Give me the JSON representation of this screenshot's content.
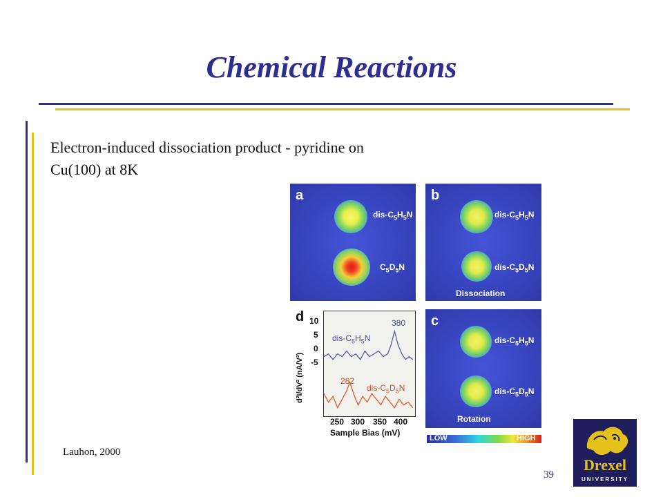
{
  "slide": {
    "title": "Chemical Reactions",
    "body_text": "Electron-induced dissociation product - pyridine on Cu(100) at 8K",
    "citation": "Lauhon, 2000",
    "page_number": "39",
    "accent_blue": "#2e2e8f",
    "accent_yellow": "#e5c21a"
  },
  "figure": {
    "panel_a": {
      "letter": "a",
      "top_label": "dis-C5H5N",
      "bottom_label": "C5D5N"
    },
    "panel_b": {
      "letter": "b",
      "top_label": "dis-C5H5N",
      "bottom_label": "dis-C5D5N",
      "caption": "Dissociation"
    },
    "panel_c": {
      "letter": "c",
      "top_label": "dis-C5H5N",
      "bottom_label": "dis-C5D5N",
      "caption": "Rotation"
    },
    "panel_d": {
      "letter": "d",
      "ylabel": "d²I/dV² (nA/V²)",
      "xlabel": "Sample Bias (mV)",
      "yticks": [
        "10",
        "5",
        "0",
        "-5"
      ],
      "xticks": [
        "250",
        "300",
        "350",
        "400"
      ],
      "series_top_label": "dis-C5H5N",
      "series_top_peak": "380",
      "series_bottom_label": "dis-C5D5N",
      "series_bottom_peak": "282"
    },
    "colorbar": {
      "low": "LOW",
      "high": "HIGH"
    }
  },
  "logo": {
    "name": "Drexel",
    "sub": "UNIVERSITY"
  },
  "chart_data": {
    "type": "line",
    "title": "",
    "xlabel": "Sample Bias (mV)",
    "ylabel": "d²I/dV² (nA/V²)",
    "xlim": [
      225,
      425
    ],
    "ylim": [
      -25,
      12
    ],
    "series": [
      {
        "name": "dis-C5H5N",
        "color": "#5a5aa8",
        "x": [
          225,
          235,
          245,
          255,
          265,
          275,
          285,
          295,
          305,
          315,
          325,
          335,
          345,
          355,
          365,
          372,
          380,
          388,
          396,
          404,
          412,
          420
        ],
        "y": [
          -4,
          -3,
          -5,
          -3,
          -4,
          -2,
          -4,
          -3,
          -5,
          -2,
          -4,
          -3,
          -2,
          -4,
          -3,
          0,
          5,
          0,
          -3,
          -5,
          -4,
          -5
        ]
      },
      {
        "name": "dis-C5D5N",
        "color": "#e05a2a",
        "x": [
          225,
          235,
          245,
          255,
          265,
          275,
          282,
          290,
          300,
          310,
          320,
          330,
          340,
          350,
          360,
          370,
          380,
          390,
          400,
          410,
          420
        ],
        "y": [
          -17,
          -20,
          -18,
          -22,
          -19,
          -16,
          -13,
          -17,
          -21,
          -18,
          -20,
          -17,
          -19,
          -21,
          -18,
          -20,
          -22,
          -19,
          -21,
          -20,
          -22
        ]
      }
    ]
  }
}
